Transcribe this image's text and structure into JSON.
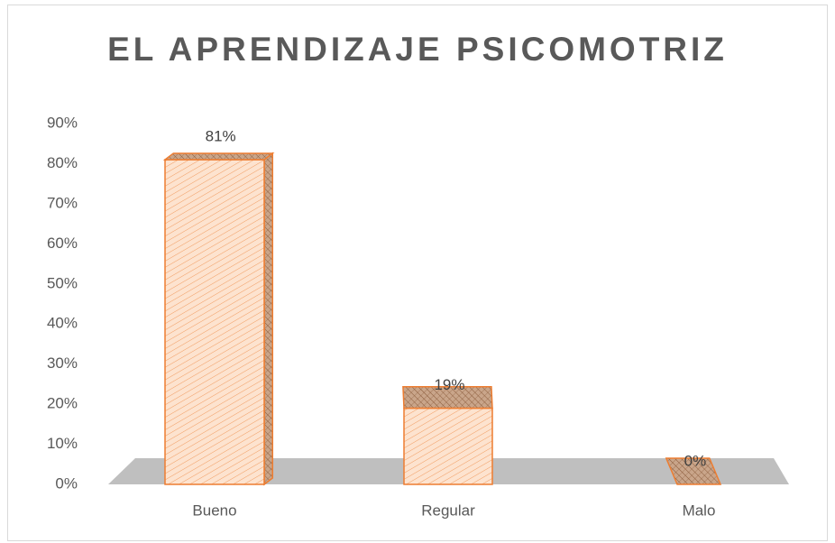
{
  "chart_data": {
    "type": "bar3d",
    "title": "EL APRENDIZAJE PSICOMOTRIZ",
    "categories": [
      "Bueno",
      "Regular",
      "Malo"
    ],
    "values": [
      81,
      19,
      0
    ],
    "value_labels": [
      "81%",
      "19%",
      "0%"
    ],
    "color": "#ed7d31",
    "ylim": [
      0,
      90
    ],
    "yticks": [
      {
        "value": 0,
        "label": "0%"
      },
      {
        "value": 10,
        "label": "10%"
      },
      {
        "value": 20,
        "label": "20%"
      },
      {
        "value": 30,
        "label": "30%"
      },
      {
        "value": 40,
        "label": "40%"
      },
      {
        "value": 50,
        "label": "50%"
      },
      {
        "value": 60,
        "label": "60%"
      },
      {
        "value": 70,
        "label": "70%"
      },
      {
        "value": 80,
        "label": "80%"
      },
      {
        "value": 90,
        "label": "90%"
      }
    ],
    "grid": false
  }
}
